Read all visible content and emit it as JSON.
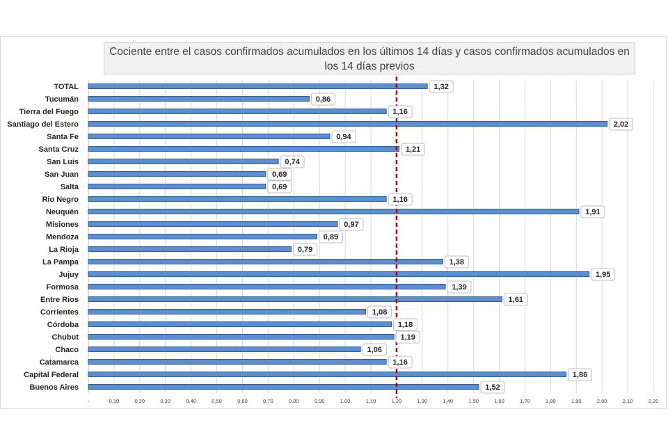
{
  "chart_data": {
    "type": "bar",
    "orientation": "horizontal",
    "title": "Cociente entre el casos confirmados acumulados en los últimos 14 días y casos confirmados acumulados en los 14 días previos",
    "categories": [
      "TOTAL",
      "Tucumán",
      "Tierra del Fuego",
      "Santiago del Estero",
      "Santa Fe",
      "Santa Cruz",
      "San Luis",
      "San Juan",
      "Salta",
      "Rio Negro",
      "Neuquén",
      "Misiones",
      "Mendoza",
      "La Rioja",
      "La Pampa",
      "Jujuy",
      "Formosa",
      "Entre Rios",
      "Corrientes",
      "Córdoba",
      "Chubut",
      "Chaco",
      "Catamarca",
      "Capital Federal",
      "Buenos Aires"
    ],
    "values": [
      1.32,
      0.86,
      1.16,
      2.02,
      0.94,
      1.21,
      0.74,
      0.69,
      0.69,
      1.16,
      1.91,
      0.97,
      0.89,
      0.79,
      1.38,
      1.95,
      1.39,
      1.61,
      1.08,
      1.18,
      1.19,
      1.06,
      1.16,
      1.86,
      1.52
    ],
    "value_labels": [
      "1,32",
      "0,86",
      "1,16",
      "2,02",
      "0,94",
      "1,21",
      "0,74",
      "0,69",
      "0,69",
      "1,16",
      "1,91",
      "0,97",
      "0,89",
      "0,79",
      "1,38",
      "1,95",
      "1,39",
      "1,61",
      "1,08",
      "1,18",
      "1,19",
      "1,06",
      "1,16",
      "1,86",
      "1,52"
    ],
    "xlim": [
      0,
      2.2
    ],
    "ticks": [
      0,
      0.1,
      0.2,
      0.3,
      0.4,
      0.5,
      0.6,
      0.7,
      0.8,
      0.9,
      1.0,
      1.1,
      1.2,
      1.3,
      1.4,
      1.5,
      1.6,
      1.7,
      1.8,
      1.9,
      2.0,
      2.1,
      2.2
    ],
    "tick_labels": [
      "-",
      "0,10",
      "0,20",
      "0,30",
      "0,40",
      "0,50",
      "0,60",
      "0,70",
      "0,80",
      "0,90",
      "1,00",
      "1,10",
      "1,20",
      "1,30",
      "1,40",
      "1,50",
      "1,60",
      "1,70",
      "1,80",
      "1,90",
      "2,00",
      "2,10",
      "2,20"
    ],
    "reference_line": 1.2,
    "grid": true,
    "colors": {
      "bar": "#5b8fd0",
      "bar_border": "#2f5d97",
      "reference_line": "#c00000",
      "grid": "#d9d9d9"
    }
  }
}
